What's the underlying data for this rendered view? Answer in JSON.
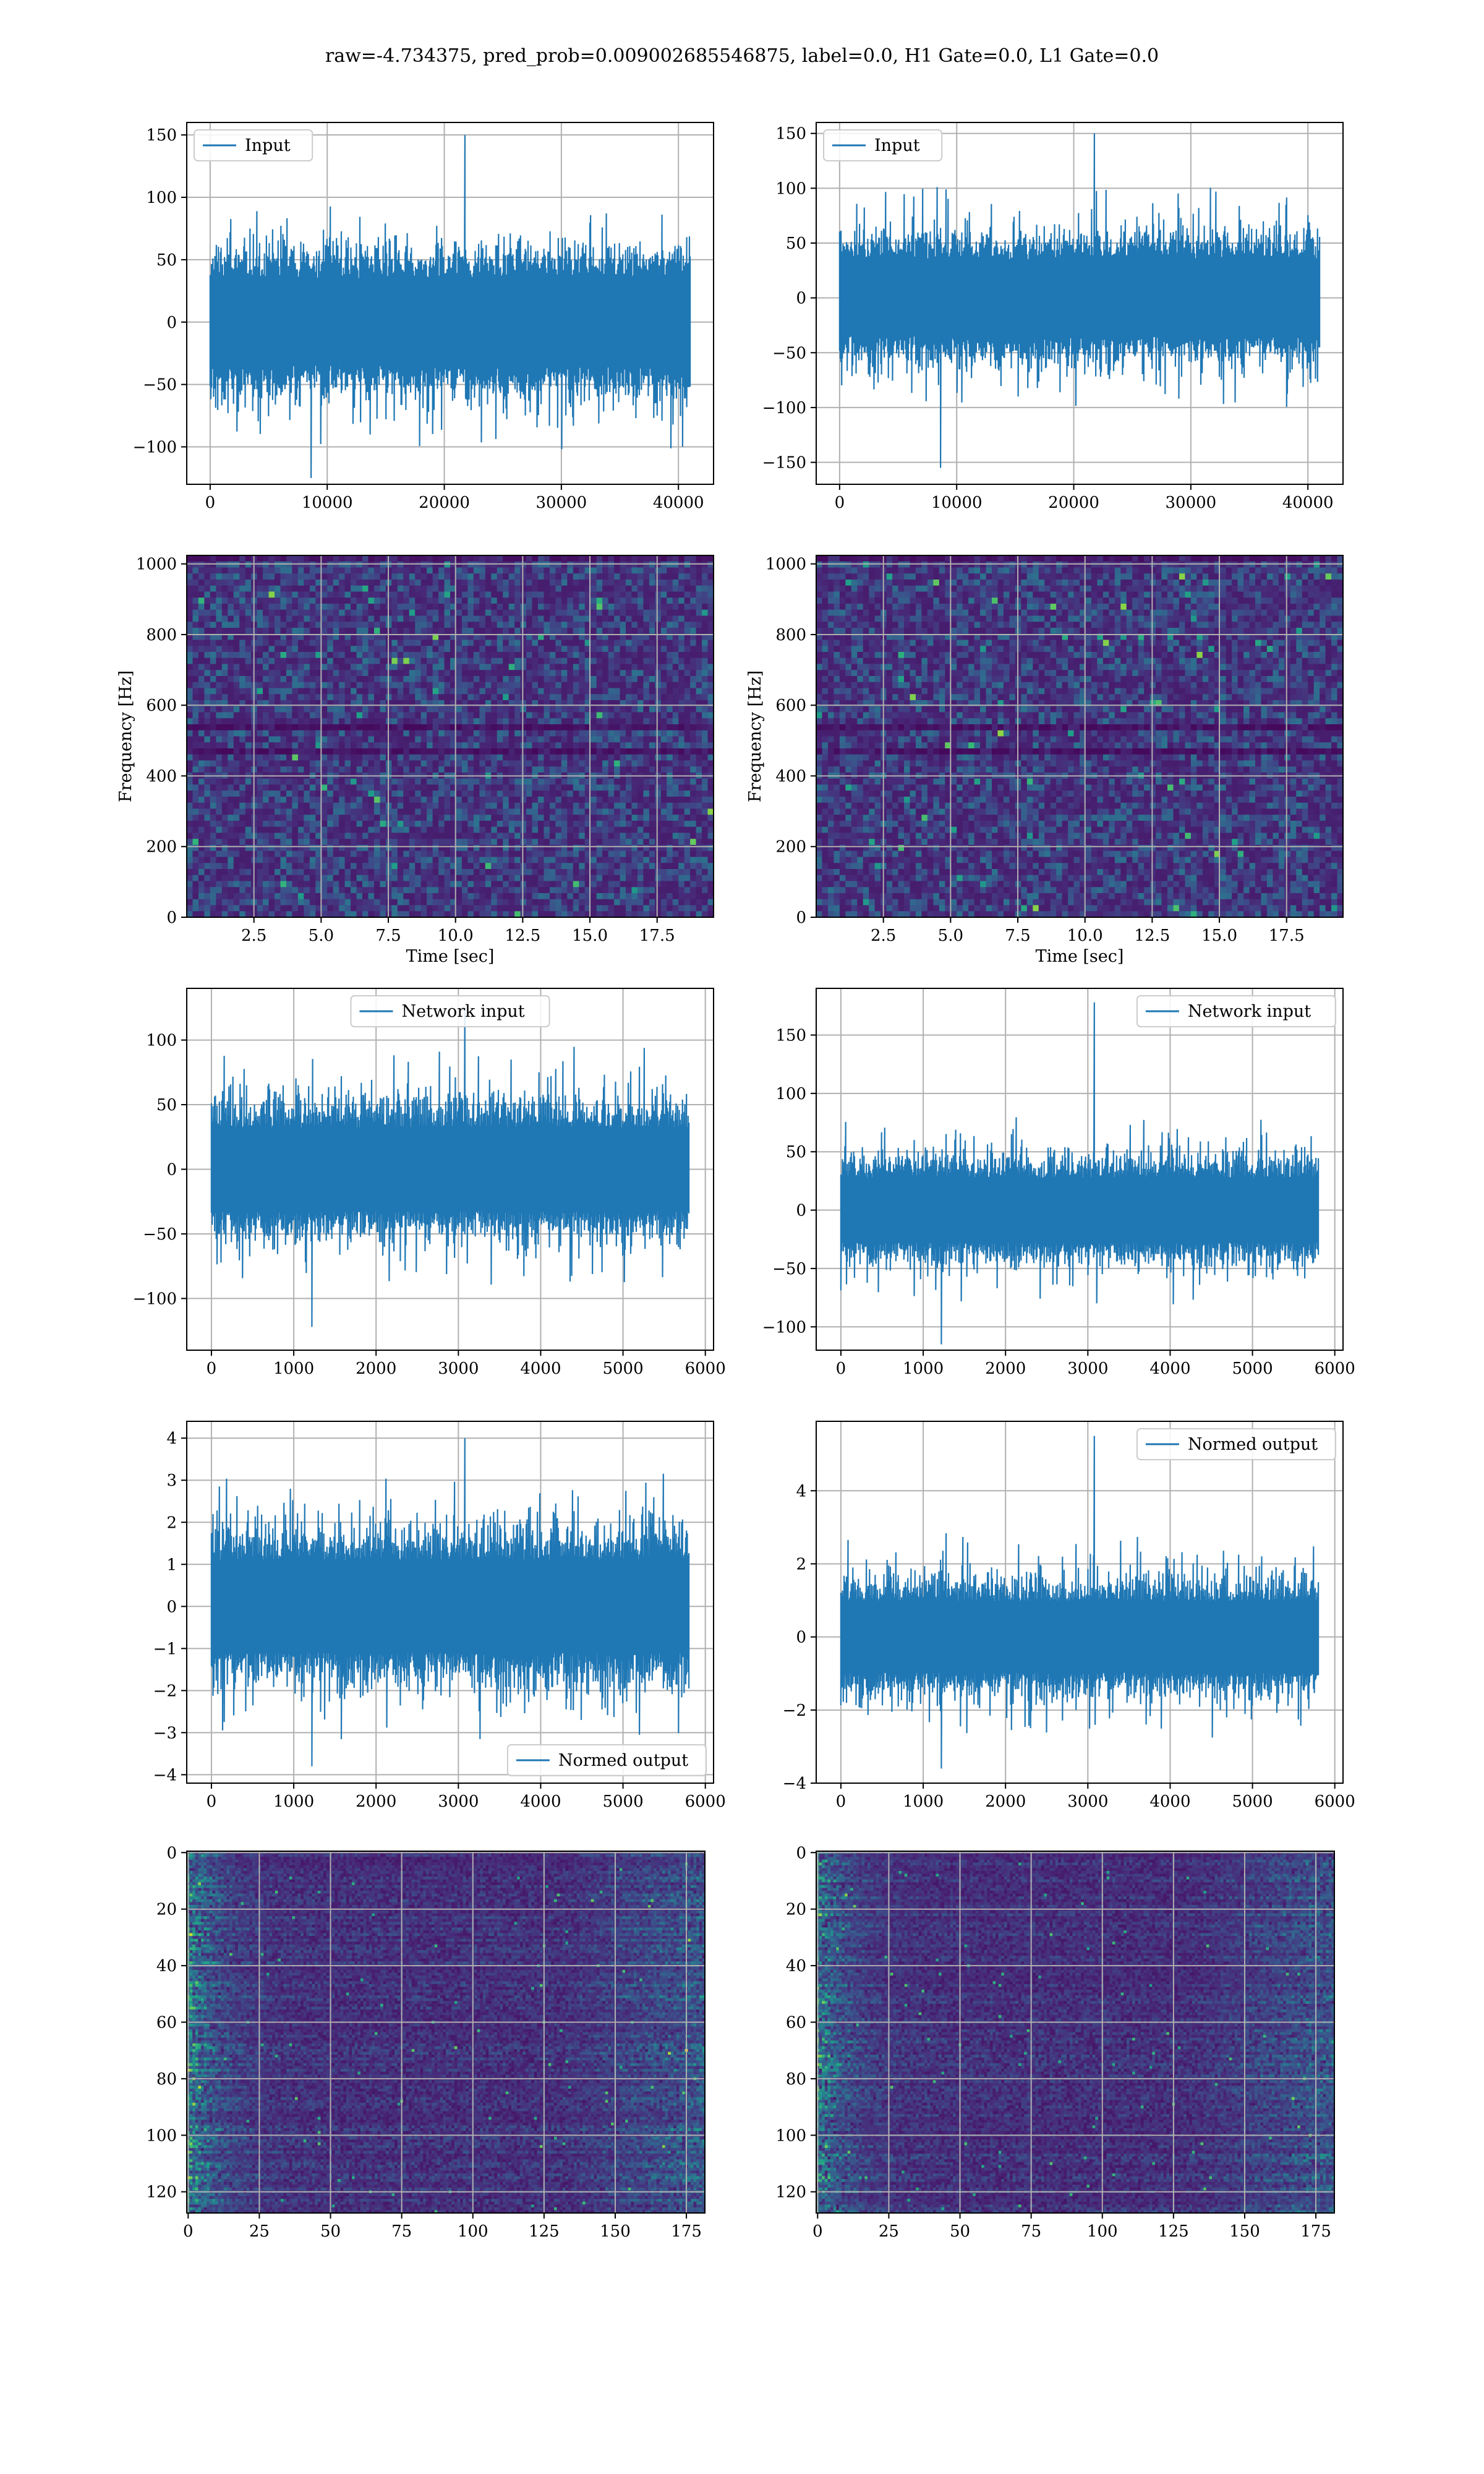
{
  "figure_title": "raw=-4.734375, pred_prob=0.009002685546875, label=0.0, H1 Gate=0.0, L1 Gate=0.0",
  "colors": {
    "line": "#1f77b4",
    "viridis_low": "#440154",
    "viridis_mid": "#21918c",
    "viridis_high": "#fde725"
  },
  "chart_data": [
    {
      "id": "input-left",
      "type": "line",
      "legend": "Input",
      "legend_loc": "upper left",
      "xlim": [
        -2000,
        43000
      ],
      "ylim": [
        -130,
        160
      ],
      "xticks": [
        0,
        10000,
        20000,
        30000,
        40000
      ],
      "yticks": [
        -100,
        -50,
        0,
        50,
        100,
        150
      ],
      "xticklabels": [
        "0",
        "10000",
        "20000",
        "30000",
        "40000"
      ],
      "yticklabels": [
        "−100",
        "−50",
        "0",
        "50",
        "100",
        "150"
      ],
      "x_range": [
        0,
        41000
      ],
      "n_points": 700,
      "sigma": 30,
      "spike_max": 150,
      "spike_min": -125,
      "xlabel": "",
      "ylabel": ""
    },
    {
      "id": "input-right",
      "type": "line",
      "legend": "Input",
      "legend_loc": "upper left",
      "xlim": [
        -2000,
        43000
      ],
      "ylim": [
        -170,
        160
      ],
      "xticks": [
        0,
        10000,
        20000,
        30000,
        40000
      ],
      "yticks": [
        -150,
        -100,
        -50,
        0,
        50,
        100,
        150
      ],
      "xticklabels": [
        "0",
        "10000",
        "20000",
        "30000",
        "40000"
      ],
      "yticklabels": [
        "−150",
        "−100",
        "−50",
        "0",
        "50",
        "100",
        "150"
      ],
      "x_range": [
        0,
        41000
      ],
      "n_points": 700,
      "sigma": 30,
      "spike_max": 150,
      "spike_min": -155,
      "xlabel": "",
      "ylabel": ""
    },
    {
      "id": "spectrogram-left",
      "type": "heatmap",
      "xlim": [
        0,
        19.6
      ],
      "ylim": [
        0,
        1024
      ],
      "xticks": [
        2.5,
        5.0,
        7.5,
        10.0,
        12.5,
        15.0,
        17.5
      ],
      "yticks": [
        0,
        200,
        400,
        600,
        800,
        1000
      ],
      "xticklabels": [
        "2.5",
        "5.0",
        "7.5",
        "10.0",
        "12.5",
        "15.0",
        "17.5"
      ],
      "yticklabels": [
        "0",
        "200",
        "400",
        "600",
        "800",
        "1000"
      ],
      "xlabel": "Time [sec]",
      "ylabel": "Frequency [Hz]",
      "cols": 90,
      "rows": 60,
      "seed": 11,
      "dark_bands": [
        0.47,
        0.49,
        0.53
      ]
    },
    {
      "id": "spectrogram-right",
      "type": "heatmap",
      "xlim": [
        0,
        19.6
      ],
      "ylim": [
        0,
        1024
      ],
      "xticks": [
        2.5,
        5.0,
        7.5,
        10.0,
        12.5,
        15.0,
        17.5
      ],
      "yticks": [
        0,
        200,
        400,
        600,
        800,
        1000
      ],
      "xticklabels": [
        "2.5",
        "5.0",
        "7.5",
        "10.0",
        "12.5",
        "15.0",
        "17.5"
      ],
      "yticklabels": [
        "0",
        "200",
        "400",
        "600",
        "800",
        "1000"
      ],
      "xlabel": "Time [sec]",
      "ylabel": "Frequency [Hz]",
      "cols": 90,
      "rows": 60,
      "seed": 23,
      "dark_bands": [
        0.47,
        0.49,
        0.53
      ]
    },
    {
      "id": "network-input-left",
      "type": "line",
      "legend": "Network input",
      "legend_loc": "upper center",
      "xlim": [
        -300,
        6100
      ],
      "ylim": [
        -140,
        140
      ],
      "xticks": [
        0,
        1000,
        2000,
        3000,
        4000,
        5000,
        6000
      ],
      "yticks": [
        -100,
        -50,
        0,
        50,
        100
      ],
      "xticklabels": [
        "0",
        "1000",
        "2000",
        "3000",
        "4000",
        "5000",
        "6000"
      ],
      "yticklabels": [
        "−100",
        "−50",
        "0",
        "50",
        "100"
      ],
      "x_range": [
        0,
        5800
      ],
      "n_points": 600,
      "sigma": 28,
      "spike_max": 125,
      "spike_min": -122,
      "xlabel": "",
      "ylabel": ""
    },
    {
      "id": "network-input-right",
      "type": "line",
      "legend": "Network input",
      "legend_loc": "upper right",
      "xlim": [
        -300,
        6100
      ],
      "ylim": [
        -120,
        190
      ],
      "xticks": [
        0,
        1000,
        2000,
        3000,
        4000,
        5000,
        6000
      ],
      "yticks": [
        -100,
        -50,
        0,
        50,
        100,
        150
      ],
      "xticklabels": [
        "0",
        "1000",
        "2000",
        "3000",
        "4000",
        "5000",
        "6000"
      ],
      "yticklabels": [
        "−100",
        "−50",
        "0",
        "50",
        "100",
        "150"
      ],
      "x_range": [
        0,
        5800
      ],
      "n_points": 600,
      "sigma": 24,
      "spike_max": 178,
      "spike_min": -115,
      "xlabel": "",
      "ylabel": ""
    },
    {
      "id": "normed-output-left",
      "type": "line",
      "legend": "Normed output",
      "legend_loc": "lower right",
      "xlim": [
        -300,
        6100
      ],
      "ylim": [
        -4.2,
        4.4
      ],
      "xticks": [
        0,
        1000,
        2000,
        3000,
        4000,
        5000,
        6000
      ],
      "yticks": [
        -4,
        -3,
        -2,
        -1,
        0,
        1,
        2,
        3,
        4
      ],
      "xticklabels": [
        "0",
        "1000",
        "2000",
        "3000",
        "4000",
        "5000",
        "6000"
      ],
      "yticklabels": [
        "−4",
        "−3",
        "−2",
        "−1",
        "0",
        "1",
        "2",
        "3",
        "4"
      ],
      "x_range": [
        0,
        5800
      ],
      "n_points": 600,
      "sigma": 0.95,
      "spike_max": 4.0,
      "spike_min": -3.8,
      "xlabel": "",
      "ylabel": ""
    },
    {
      "id": "normed-output-right",
      "type": "line",
      "legend": "Normed output",
      "legend_loc": "upper right",
      "xlim": [
        -300,
        6100
      ],
      "ylim": [
        -4,
        5.9
      ],
      "xticks": [
        0,
        1000,
        2000,
        3000,
        4000,
        5000,
        6000
      ],
      "yticks": [
        -4,
        -2,
        0,
        2,
        4
      ],
      "xticklabels": [
        "0",
        "1000",
        "2000",
        "3000",
        "4000",
        "5000",
        "6000"
      ],
      "yticklabels": [
        "−4",
        "−2",
        "0",
        "2",
        "4"
      ],
      "x_range": [
        0,
        5800
      ],
      "n_points": 600,
      "sigma": 0.85,
      "spike_max": 5.5,
      "spike_min": -3.6,
      "xlabel": "",
      "ylabel": ""
    },
    {
      "id": "feature-map-left",
      "type": "heatmap",
      "xlim": [
        -0.5,
        181.5
      ],
      "ylim": [
        127.5,
        -0.5
      ],
      "xticks": [
        0,
        25,
        50,
        75,
        100,
        125,
        150,
        175
      ],
      "yticks": [
        0,
        20,
        40,
        60,
        80,
        100,
        120
      ],
      "xticklabels": [
        "0",
        "25",
        "50",
        "75",
        "100",
        "125",
        "150",
        "175"
      ],
      "yticklabels": [
        "0",
        "20",
        "40",
        "60",
        "80",
        "100",
        "120"
      ],
      "xlabel": "",
      "ylabel": "",
      "cols": 182,
      "rows": 128,
      "seed": 37,
      "streaks": true
    },
    {
      "id": "feature-map-right",
      "type": "heatmap",
      "xlim": [
        -0.5,
        181.5
      ],
      "ylim": [
        127.5,
        -0.5
      ],
      "xticks": [
        0,
        25,
        50,
        75,
        100,
        125,
        150,
        175
      ],
      "yticks": [
        0,
        20,
        40,
        60,
        80,
        100,
        120
      ],
      "xticklabels": [
        "0",
        "25",
        "50",
        "75",
        "100",
        "125",
        "150",
        "175"
      ],
      "yticklabels": [
        "0",
        "20",
        "40",
        "60",
        "80",
        "100",
        "120"
      ],
      "xlabel": "",
      "ylabel": "",
      "cols": 182,
      "rows": 128,
      "seed": 53,
      "streaks": true
    }
  ]
}
